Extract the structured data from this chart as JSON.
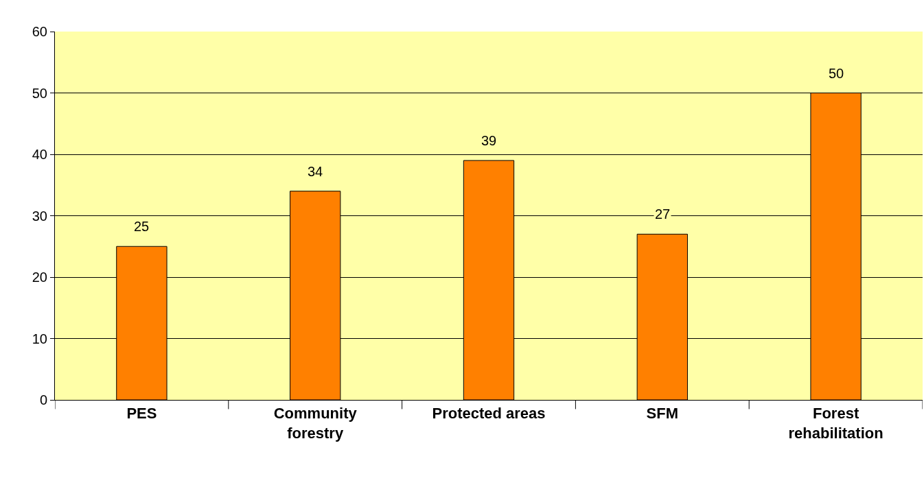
{
  "chart_data": {
    "type": "bar",
    "categories": [
      "PES",
      "Community forestry",
      "Protected areas",
      "SFM",
      "Forest rehabilitation"
    ],
    "values": [
      25,
      34,
      39,
      27,
      50
    ],
    "color": "#ff8000",
    "ylim": [
      0,
      60
    ],
    "yticks": [
      0,
      10,
      20,
      30,
      40,
      50,
      60
    ],
    "grid": "y",
    "data_labels": true,
    "legend": false
  }
}
